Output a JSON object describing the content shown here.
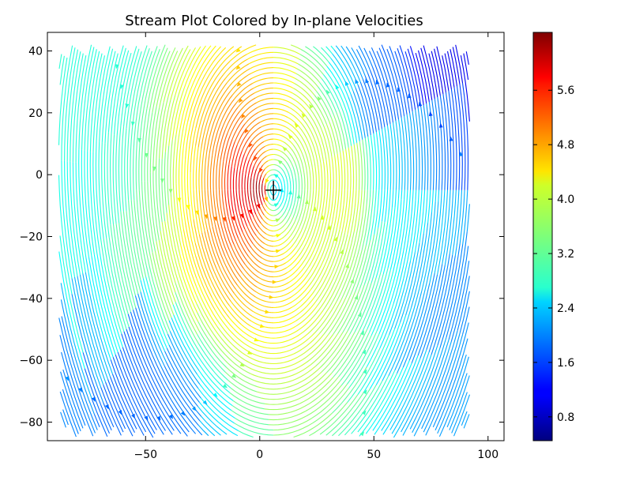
{
  "chart_data": {
    "type": "streamplot",
    "title": "Stream Plot Colored by In-plane Velocities",
    "xlabel": "",
    "ylabel": "",
    "xlim": [
      -93,
      107
    ],
    "ylim": [
      -86,
      46
    ],
    "xticks": [
      -50,
      0,
      50,
      100
    ],
    "yticks": [
      -80,
      -60,
      -40,
      -20,
      0,
      20,
      40
    ],
    "grid": false,
    "vortex_center": [
      6,
      -5
    ],
    "marker_position": [
      6,
      -5
    ],
    "field_extent": {
      "x": [
        -88,
        92
      ],
      "y": [
        -85,
        42
      ]
    },
    "colorbar": {
      "colormap": "jet",
      "range": [
        0.45,
        6.45
      ],
      "ticks": [
        0.8,
        1.6,
        2.4,
        3.2,
        4.0,
        4.8,
        5.6
      ],
      "tick_labels": [
        "0.8",
        "1.6",
        "2.4",
        "3.2",
        "4.0",
        "4.8",
        "5.6"
      ]
    },
    "speed_samples": [
      {
        "x": 6,
        "y": -5,
        "speed": 2.5
      },
      {
        "x": 0,
        "y": -5,
        "speed": 6.3
      },
      {
        "x": -10,
        "y": -5,
        "speed": 5.8
      },
      {
        "x": -20,
        "y": -5,
        "speed": 4.9
      },
      {
        "x": -30,
        "y": -5,
        "speed": 4.2
      },
      {
        "x": -45,
        "y": -5,
        "speed": 3.4
      },
      {
        "x": -60,
        "y": -5,
        "speed": 3.0
      },
      {
        "x": -80,
        "y": -5,
        "speed": 2.8
      },
      {
        "x": 35,
        "y": -5,
        "speed": 4.0
      },
      {
        "x": 60,
        "y": -5,
        "speed": 2.6
      },
      {
        "x": 80,
        "y": 35,
        "speed": 1.1
      },
      {
        "x": 60,
        "y": 20,
        "speed": 1.8
      },
      {
        "x": -55,
        "y": -70,
        "speed": 1.8
      },
      {
        "x": -70,
        "y": 20,
        "speed": 2.9
      },
      {
        "x": 90,
        "y": -40,
        "speed": 2.0
      }
    ]
  }
}
